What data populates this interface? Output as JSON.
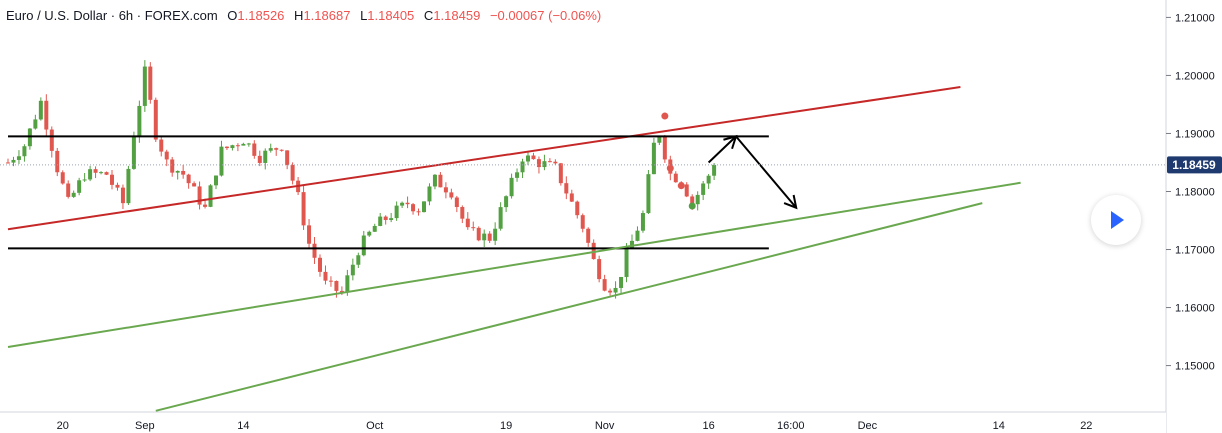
{
  "legend": {
    "symbol": "Euro / U.S. Dollar · 6h · FOREX.com",
    "o_label": "O",
    "o_value": "1.18526",
    "h_label": "H",
    "h_value": "1.18687",
    "l_label": "L",
    "l_value": "1.18405",
    "c_label": "C",
    "c_value": "1.18459",
    "change": "−0.00067 (−0.06%)"
  },
  "price_badge": "1.18459",
  "colors": {
    "up": "#53a043",
    "down": "#e0574f",
    "channel_top": "#c62828",
    "support": "#6aa84f",
    "horizontal": "#000000",
    "badge_bg": "#1e3a6e"
  },
  "icons": {
    "play": "play-icon"
  },
  "chart_data": {
    "type": "candlestick",
    "title": "Euro / U.S. Dollar · 6h · FOREX.com",
    "xlabel": "",
    "ylabel": "",
    "ylim": [
      1.142,
      1.213
    ],
    "y_ticks": [
      "1.21000",
      "1.20000",
      "1.19000",
      "1.18000",
      "1.17000",
      "1.16000",
      "1.15000"
    ],
    "y_tick_values": [
      1.21,
      1.2,
      1.19,
      1.18,
      1.17,
      1.16,
      1.15
    ],
    "x_ticks": [
      "20",
      "Sep",
      "14",
      "Oct",
      "19",
      "Nov",
      "16",
      "16:00",
      "Dec",
      "14",
      "22"
    ],
    "x_tick_index": [
      10,
      25,
      43,
      67,
      91,
      109,
      128,
      143,
      157,
      181,
      197
    ],
    "x_count": 210,
    "last_price": 1.18459,
    "candles_index_end": 129,
    "path": [
      [
        0,
        1.185
      ],
      [
        3,
        1.188
      ],
      [
        6,
        1.1955
      ],
      [
        9,
        1.184
      ],
      [
        11,
        1.178
      ],
      [
        14,
        1.183
      ],
      [
        18,
        1.183
      ],
      [
        21,
        1.178
      ],
      [
        23,
        1.19
      ],
      [
        25,
        1.2005
      ],
      [
        27,
        1.19
      ],
      [
        29,
        1.185
      ],
      [
        32,
        1.183
      ],
      [
        36,
        1.177
      ],
      [
        39,
        1.187
      ],
      [
        43,
        1.189
      ],
      [
        46,
        1.186
      ],
      [
        50,
        1.188
      ],
      [
        53,
        1.179
      ],
      [
        55,
        1.171
      ],
      [
        58,
        1.164
      ],
      [
        61,
        1.1625
      ],
      [
        64,
        1.17
      ],
      [
        67,
        1.174
      ],
      [
        70,
        1.176
      ],
      [
        73,
        1.178
      ],
      [
        75,
        1.177
      ],
      [
        78,
        1.182
      ],
      [
        81,
        1.18
      ],
      [
        84,
        1.173
      ],
      [
        88,
        1.172
      ],
      [
        91,
        1.179
      ],
      [
        94,
        1.186
      ],
      [
        97,
        1.185
      ],
      [
        100,
        1.184
      ],
      [
        102,
        1.18
      ],
      [
        105,
        1.174
      ],
      [
        107,
        1.168
      ],
      [
        109,
        1.164
      ],
      [
        111,
        1.163
      ],
      [
        113,
        1.169
      ],
      [
        116,
        1.176
      ],
      [
        118,
        1.188
      ],
      [
        119,
        1.19
      ],
      [
        121,
        1.183
      ],
      [
        123,
        1.182
      ],
      [
        125,
        1.178
      ],
      [
        127,
        1.181
      ],
      [
        129,
        1.18459
      ]
    ],
    "lines": [
      {
        "name": "",
        "color": "channel_top",
        "points": [
          [
            0,
            1.1735
          ],
          [
            174,
            1.198
          ]
        ]
      },
      {
        "name": "",
        "color": "horizontal",
        "points": [
          [
            0,
            1.1895
          ],
          [
            139,
            1.1895
          ]
        ]
      },
      {
        "name": "",
        "color": "horizontal",
        "points": [
          [
            0,
            1.1702
          ],
          [
            139,
            1.1702
          ]
        ]
      },
      {
        "name": "",
        "color": "support",
        "points": [
          [
            0,
            1.1532
          ],
          [
            185,
            1.1815
          ]
        ]
      },
      {
        "name": "",
        "color": "support",
        "points": [
          [
            27,
            1.1422
          ],
          [
            178,
            1.178
          ]
        ]
      }
    ],
    "arrows": [
      {
        "points": [
          [
            128,
            1.185
          ],
          [
            133,
            1.1895
          ]
        ]
      },
      {
        "points": [
          [
            133,
            1.1895
          ],
          [
            144,
            1.1772
          ]
        ]
      }
    ],
    "markers": [
      {
        "x": 120,
        "y": 1.193,
        "color": "down"
      },
      {
        "x": 121,
        "y": 1.184,
        "color": "down"
      },
      {
        "x": 123,
        "y": 1.181,
        "color": "down"
      },
      {
        "x": 125,
        "y": 1.1775,
        "color": "up"
      }
    ]
  }
}
